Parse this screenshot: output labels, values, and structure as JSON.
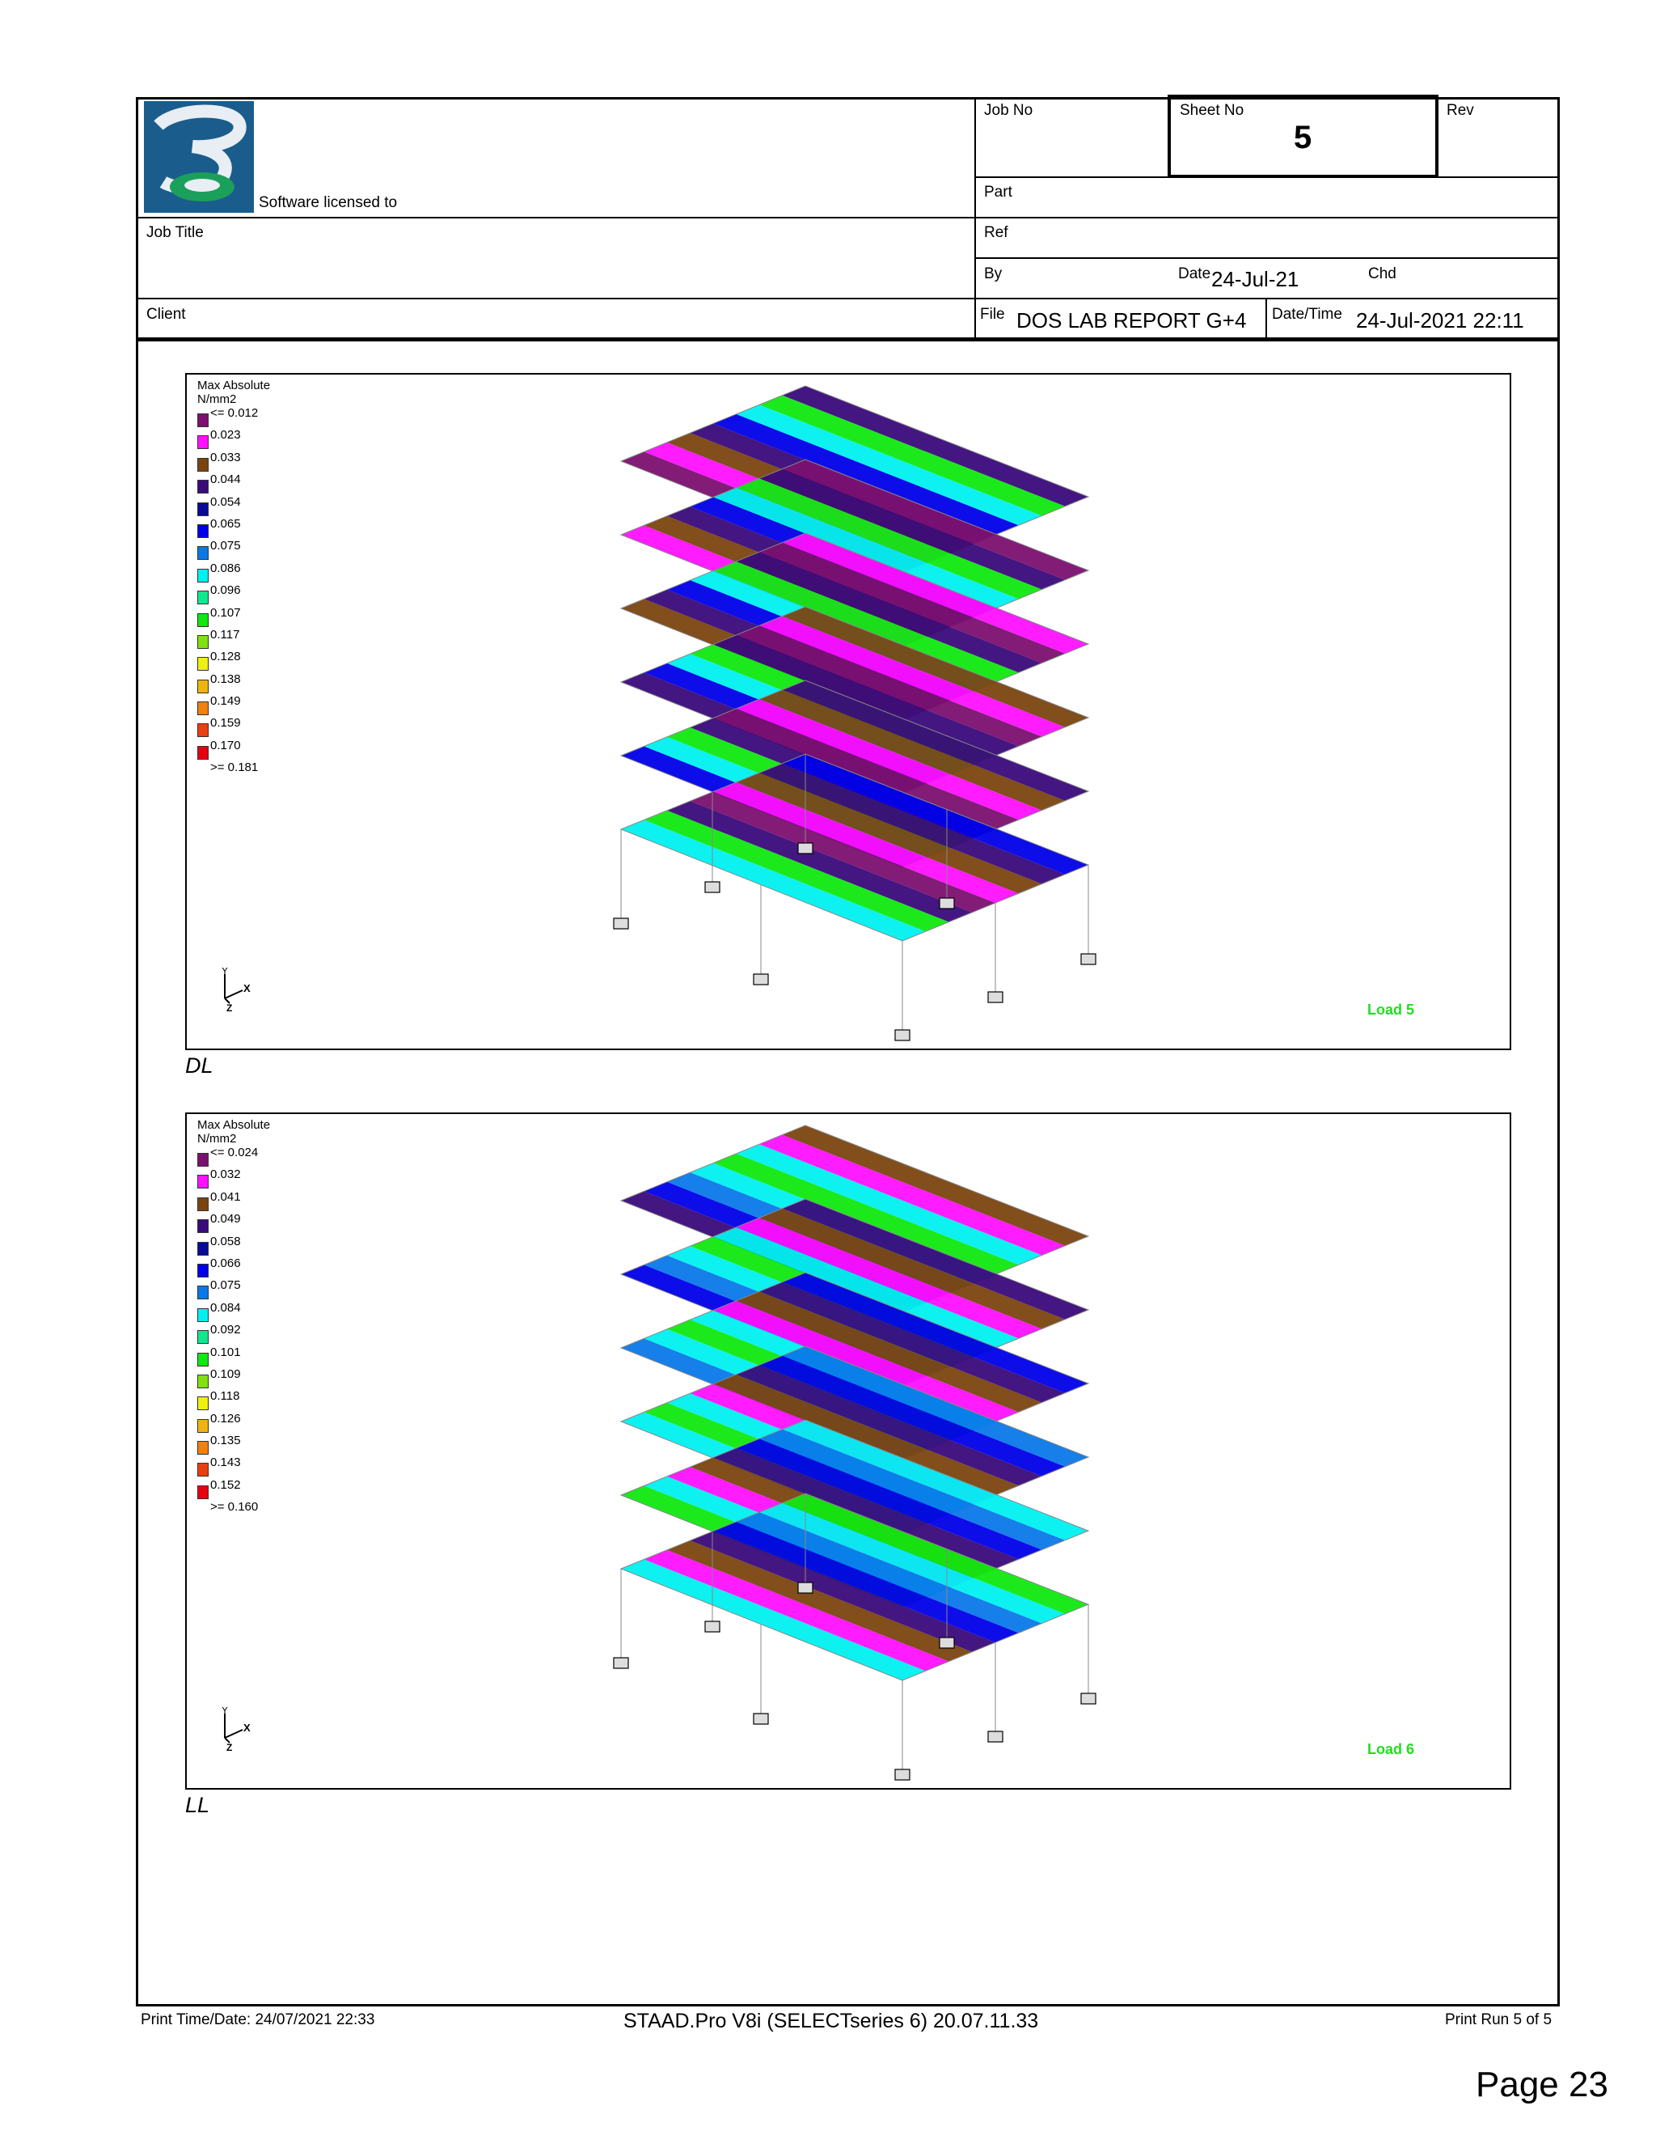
{
  "header": {
    "licensed_to": "Software licensed to",
    "job_no_label": "Job No",
    "sheet_no_label": "Sheet No",
    "sheet_no_value": "5",
    "rev_label": "Rev",
    "part_label": "Part",
    "job_title_label": "Job Title",
    "ref_label": "Ref",
    "by_label": "By",
    "date_label": "Date",
    "date_value": "24-Jul-21",
    "chd_label": "Chd",
    "client_label": "Client",
    "file_label": "File",
    "file_value": "DOS LAB REPORT G+4",
    "datetime_label": "Date/Time",
    "datetime_value": "24-Jul-2021 22:11"
  },
  "figures": [
    {
      "legend_title": "Max Absolute",
      "legend_unit": "N/mm2",
      "legend_items": [
        {
          "label": "<= 0.012",
          "color": "#7b1070"
        },
        {
          "label": "0.023",
          "color": "#ff10ff"
        },
        {
          "label": "0.033",
          "color": "#7a4410"
        },
        {
          "label": "0.044",
          "color": "#3a0a7a"
        },
        {
          "label": "0.054",
          "color": "#0a0a9a"
        },
        {
          "label": "0.065",
          "color": "#0000e8"
        },
        {
          "label": "0.075",
          "color": "#0a78e8"
        },
        {
          "label": "0.086",
          "color": "#00f0f0"
        },
        {
          "label": "0.096",
          "color": "#10e890"
        },
        {
          "label": "0.107",
          "color": "#10e810"
        },
        {
          "label": "0.117",
          "color": "#80e010"
        },
        {
          "label": "0.128",
          "color": "#f0f010"
        },
        {
          "label": "0.138",
          "color": "#f0b410"
        },
        {
          "label": "0.149",
          "color": "#f08010"
        },
        {
          "label": "0.159",
          "color": "#e84010"
        },
        {
          "label": "0.170",
          "color": "#e80010"
        },
        {
          "label": ">= 0.181",
          "color": ""
        }
      ],
      "load_label": "Load 5",
      "caption": "DL"
    },
    {
      "legend_title": "Max Absolute",
      "legend_unit": "N/mm2",
      "legend_items": [
        {
          "label": "<= 0.024",
          "color": "#7b1070"
        },
        {
          "label": "0.032",
          "color": "#ff10ff"
        },
        {
          "label": "0.041",
          "color": "#7a4410"
        },
        {
          "label": "0.049",
          "color": "#3a0a7a"
        },
        {
          "label": "0.058",
          "color": "#0a0a9a"
        },
        {
          "label": "0.066",
          "color": "#0000e8"
        },
        {
          "label": "0.075",
          "color": "#0a78e8"
        },
        {
          "label": "0.084",
          "color": "#00f0f0"
        },
        {
          "label": "0.092",
          "color": "#10e890"
        },
        {
          "label": "0.101",
          "color": "#10e810"
        },
        {
          "label": "0.109",
          "color": "#80e010"
        },
        {
          "label": "0.118",
          "color": "#f0f010"
        },
        {
          "label": "0.126",
          "color": "#f0b410"
        },
        {
          "label": "0.135",
          "color": "#f08010"
        },
        {
          "label": "0.143",
          "color": "#e84010"
        },
        {
          "label": "0.152",
          "color": "#e80010"
        },
        {
          "label": ">= 0.160",
          "color": ""
        }
      ],
      "load_label": "Load 6",
      "caption": "LL"
    }
  ],
  "footer": {
    "print_time": "Print Time/Date: 24/07/2021 22:33",
    "software": "STAAD.Pro V8i (SELECTseries 6) 20.07.11.33",
    "print_run": "Print Run 5 of 5",
    "page": "Page 23"
  }
}
